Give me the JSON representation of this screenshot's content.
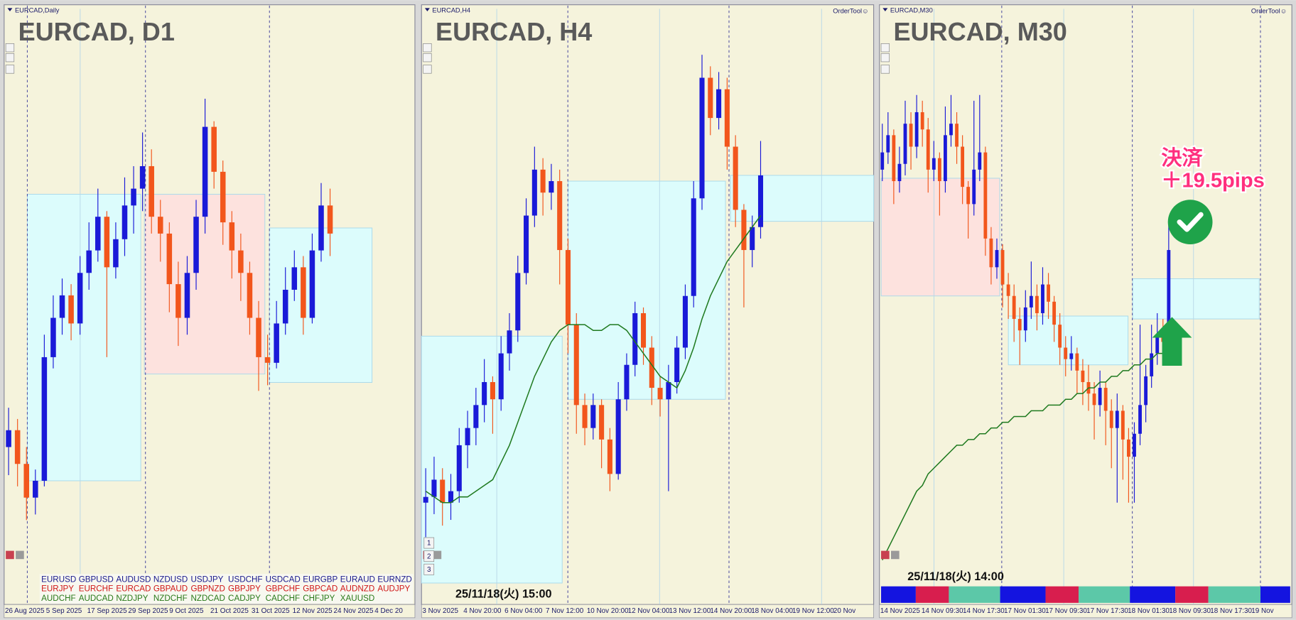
{
  "bull_color": "#1a1ad8",
  "bear_color": "#f2561c",
  "ma_color": "#1f7a1f",
  "panels": [
    {
      "header": "EURCAD,Daily",
      "title": "EURCAD, D1",
      "xlim": [
        0,
        46
      ],
      "ylim": [
        0,
        100
      ],
      "candles": [
        [
          22,
          29,
          17,
          25
        ],
        [
          25,
          27,
          15,
          19
        ],
        [
          19,
          22,
          9,
          13
        ],
        [
          13,
          18,
          10,
          16
        ],
        [
          16,
          42,
          15,
          38
        ],
        [
          38,
          49,
          36,
          45
        ],
        [
          45,
          52,
          42,
          49
        ],
        [
          49,
          51,
          41,
          44
        ],
        [
          44,
          56,
          42,
          53
        ],
        [
          53,
          62,
          50,
          57
        ],
        [
          57,
          68,
          55,
          63
        ],
        [
          63,
          64,
          38,
          54
        ],
        [
          54,
          62,
          52,
          59
        ],
        [
          59,
          70,
          56,
          65
        ],
        [
          65,
          72,
          60,
          68
        ],
        [
          68,
          78,
          64,
          72
        ],
        [
          72,
          75,
          60,
          63
        ],
        [
          63,
          66,
          55,
          60
        ],
        [
          60,
          62,
          46,
          51
        ],
        [
          51,
          55,
          40,
          45
        ],
        [
          45,
          56,
          42,
          53
        ],
        [
          53,
          66,
          50,
          63
        ],
        [
          63,
          84,
          60,
          79
        ],
        [
          79,
          80,
          68,
          71
        ],
        [
          71,
          73,
          58,
          62
        ],
        [
          62,
          64,
          52,
          57
        ],
        [
          57,
          60,
          48,
          53
        ],
        [
          53,
          55,
          42,
          45
        ],
        [
          45,
          48,
          32,
          38
        ],
        [
          38,
          42,
          33,
          37
        ],
        [
          37,
          48,
          36,
          44
        ],
        [
          44,
          54,
          42,
          50
        ],
        [
          50,
          57,
          48,
          54
        ],
        [
          54,
          56,
          42,
          45
        ],
        [
          45,
          60,
          44,
          57
        ],
        [
          57,
          69,
          55,
          65
        ],
        [
          65,
          68,
          56,
          60
        ]
      ],
      "boxes": [
        {
          "from": 2.6,
          "to": 15.3,
          "high": 67,
          "low": 16,
          "color": "#dcfcfc"
        },
        {
          "from": 15.7,
          "to": 29.2,
          "high": 67,
          "low": 35,
          "color": "#fde2de"
        },
        {
          "from": 29.7,
          "to": 41.2,
          "high": 61,
          "low": 33.5,
          "color": "#dcfcfc"
        }
      ],
      "dates": [
        "26 Aug 2025",
        "5 Sep 2025",
        "17 Sep 2025",
        "29 Sep 2025",
        "9 Oct 2025",
        "21 Oct 2025",
        "31 Oct 2025",
        "12 Nov 2025",
        "24 Nov 2025",
        "4 Dec 20"
      ],
      "symbols": [
        [
          "EURUSD",
          "GBPUSD",
          "AUDUSD",
          "NZDUSD",
          "USDJPY",
          "USDCHF",
          "USDCAD",
          "EURGBP",
          "EURAUD",
          "EURNZD"
        ],
        [
          "EURJPY",
          "EURCHF",
          "EURCAD",
          "GBPAUD",
          "GBPNZD",
          "GBPJPY",
          "GBPCHF",
          "GBPCAD",
          "AUDNZD",
          "AUDJPY"
        ],
        [
          "AUDCHF",
          "AUDCAD",
          "NZDJPY",
          "NZDCHF",
          "NZDCAD",
          "CADJPY",
          "CADCHF",
          "CHFJPY",
          "XAUUSD"
        ]
      ]
    },
    {
      "header": "EURCAD,H4",
      "tool": "OrderTool☺",
      "title": "EURCAD, H4",
      "xlim": [
        0,
        54
      ],
      "ylim": [
        0,
        100
      ],
      "candles": [
        [
          14,
          20,
          8,
          15
        ],
        [
          15,
          22,
          12,
          18
        ],
        [
          18,
          20,
          10,
          14
        ],
        [
          14,
          19,
          11,
          16
        ],
        [
          16,
          27,
          14,
          24
        ],
        [
          24,
          30,
          20,
          27
        ],
        [
          27,
          34,
          24,
          31
        ],
        [
          31,
          39,
          28,
          35
        ],
        [
          35,
          36,
          26,
          32
        ],
        [
          32,
          43,
          30,
          40
        ],
        [
          40,
          47,
          37,
          44
        ],
        [
          44,
          57,
          42,
          54
        ],
        [
          54,
          67,
          52,
          64
        ],
        [
          64,
          76,
          62,
          72
        ],
        [
          72,
          74,
          64,
          68
        ],
        [
          68,
          73,
          65,
          70
        ],
        [
          70,
          72,
          52,
          58
        ],
        [
          58,
          60,
          40,
          45
        ],
        [
          45,
          47,
          26,
          31
        ],
        [
          31,
          33,
          24,
          27
        ],
        [
          27,
          33,
          25,
          31
        ],
        [
          31,
          32,
          20,
          25
        ],
        [
          25,
          27,
          16,
          19
        ],
        [
          19,
          35,
          18,
          32
        ],
        [
          32,
          40,
          30,
          38
        ],
        [
          38,
          49,
          36,
          47
        ],
        [
          47,
          48,
          38,
          41
        ],
        [
          41,
          43,
          31,
          34
        ],
        [
          34,
          36,
          29,
          32
        ],
        [
          32,
          38,
          16,
          35
        ],
        [
          35,
          43,
          33,
          41
        ],
        [
          41,
          52,
          39,
          50
        ],
        [
          50,
          70,
          48,
          67
        ],
        [
          67,
          92,
          65,
          88
        ],
        [
          88,
          90,
          78,
          81
        ],
        [
          81,
          89,
          79,
          86
        ],
        [
          86,
          88,
          72,
          76
        ],
        [
          76,
          78,
          62,
          65
        ],
        [
          65,
          66,
          48,
          58
        ],
        [
          58,
          64,
          55,
          62
        ],
        [
          62,
          77,
          60,
          71
        ]
      ],
      "ma": [
        16,
        15,
        14,
        14,
        15,
        15,
        16,
        17,
        18,
        21,
        24,
        28,
        32,
        36,
        39,
        42,
        44,
        45,
        45,
        45,
        44,
        44,
        45,
        45,
        44,
        42,
        40,
        38,
        36,
        35,
        34,
        37,
        41,
        46,
        50,
        53,
        56,
        58,
        60,
        62,
        64
      ],
      "boxes": [
        {
          "from": 0,
          "to": 16.8,
          "high": 43,
          "low": 0,
          "color": "#dcfcfc"
        },
        {
          "from": 17.5,
          "to": 36.3,
          "high": 70,
          "low": 32,
          "color": "#dcfcfc"
        },
        {
          "from": 36.9,
          "to": 54,
          "high": 71,
          "low": 63,
          "color": "#dcfcfc"
        }
      ],
      "dates": [
        "3 Nov 2025",
        "4 Nov 20:00",
        "6 Nov 04:00",
        "7 Nov 12:00",
        "10 Nov 20:00",
        "12 Nov 04:00",
        "13 Nov 12:00",
        "14 Nov 20:00",
        "18 Nov 04:00",
        "19 Nov 12:00",
        "20 Nov"
      ],
      "buttons": [
        "1",
        "2",
        "3"
      ],
      "stamp": "25/11/18(火) 15:00"
    },
    {
      "header": "EURCAD,M30",
      "tool": "OrderTool☺",
      "title": "EURCAD, M30",
      "xlim": [
        0,
        72
      ],
      "ylim": [
        0,
        100
      ],
      "candles": [
        [
          72,
          80,
          70,
          75
        ],
        [
          75,
          82,
          73,
          78
        ],
        [
          78,
          79,
          66,
          70
        ],
        [
          70,
          76,
          68,
          73
        ],
        [
          73,
          84,
          71,
          80
        ],
        [
          80,
          82,
          72,
          76
        ],
        [
          76,
          85,
          74,
          82
        ],
        [
          82,
          84,
          76,
          79
        ],
        [
          79,
          81,
          68,
          72
        ],
        [
          72,
          77,
          70,
          74
        ],
        [
          74,
          75,
          64,
          70
        ],
        [
          70,
          83,
          68,
          78
        ],
        [
          78,
          85,
          76,
          80
        ],
        [
          80,
          82,
          73,
          76
        ],
        [
          76,
          78,
          66,
          69
        ],
        [
          69,
          70,
          60,
          66
        ],
        [
          66,
          84,
          64,
          72
        ],
        [
          72,
          85,
          70,
          75
        ],
        [
          75,
          76,
          57,
          60
        ],
        [
          60,
          62,
          52,
          55
        ],
        [
          55,
          60,
          53,
          58
        ],
        [
          58,
          59,
          48,
          52
        ],
        [
          52,
          54,
          46,
          50
        ],
        [
          50,
          52,
          42,
          46
        ],
        [
          46,
          48,
          38,
          44
        ],
        [
          44,
          51,
          42,
          48
        ],
        [
          48,
          56,
          46,
          50
        ],
        [
          50,
          52,
          44,
          47
        ],
        [
          47,
          55,
          45,
          52
        ],
        [
          52,
          54,
          46,
          49
        ],
        [
          49,
          50,
          42,
          45
        ],
        [
          45,
          47,
          38,
          41
        ],
        [
          41,
          43,
          36,
          39
        ],
        [
          39,
          43,
          37,
          40
        ],
        [
          40,
          41,
          33,
          37
        ],
        [
          37,
          39,
          31,
          35
        ],
        [
          35,
          38,
          30,
          33
        ],
        [
          33,
          35,
          25,
          31
        ],
        [
          31,
          37,
          29,
          34
        ],
        [
          34,
          35,
          24,
          30
        ],
        [
          30,
          32,
          20,
          27
        ],
        [
          27,
          33,
          14,
          30
        ],
        [
          30,
          31,
          18,
          25
        ],
        [
          25,
          27,
          14,
          22
        ],
        [
          22,
          28,
          14,
          26
        ],
        [
          26,
          45,
          24,
          31
        ],
        [
          31,
          38,
          28,
          36
        ],
        [
          36,
          45,
          34,
          40
        ],
        [
          40,
          47,
          38,
          43
        ],
        [
          43,
          46,
          40,
          42
        ],
        [
          42,
          63,
          40,
          58
        ]
      ],
      "ma": [
        4,
        6,
        8,
        10,
        12,
        14,
        16,
        17,
        19,
        20,
        21,
        22,
        23,
        24,
        24,
        25,
        25,
        26,
        26,
        27,
        27,
        28,
        28,
        29,
        29,
        29,
        30,
        30,
        30,
        31,
        31,
        31,
        32,
        32,
        33,
        33,
        34,
        34,
        35,
        35,
        36,
        36,
        37,
        37,
        38,
        38,
        39,
        39,
        40,
        40,
        41
      ],
      "boxes": [
        {
          "from": 0.3,
          "to": 21,
          "high": 70.5,
          "low": 50,
          "color": "#fde2de"
        },
        {
          "from": 22.5,
          "to": 43.4,
          "high": 46.5,
          "low": 38,
          "color": "#dcfcfc"
        },
        {
          "from": 44.2,
          "to": 66.3,
          "high": 53,
          "low": 46,
          "color": "#dcfcfc"
        }
      ],
      "dates": [
        "14 Nov 2025",
        "14 Nov 09:30",
        "14 Nov 17:30",
        "17 Nov 01:30",
        "17 Nov 09:30",
        "17 Nov 17:30",
        "18 Nov 01:30",
        "18 Nov 09:30",
        "18 Nov 17:30",
        "19 Nov"
      ],
      "stamp": "25/11/18(火) 14:00",
      "note": [
        "決済",
        "＋19.5pips"
      ]
    }
  ]
}
